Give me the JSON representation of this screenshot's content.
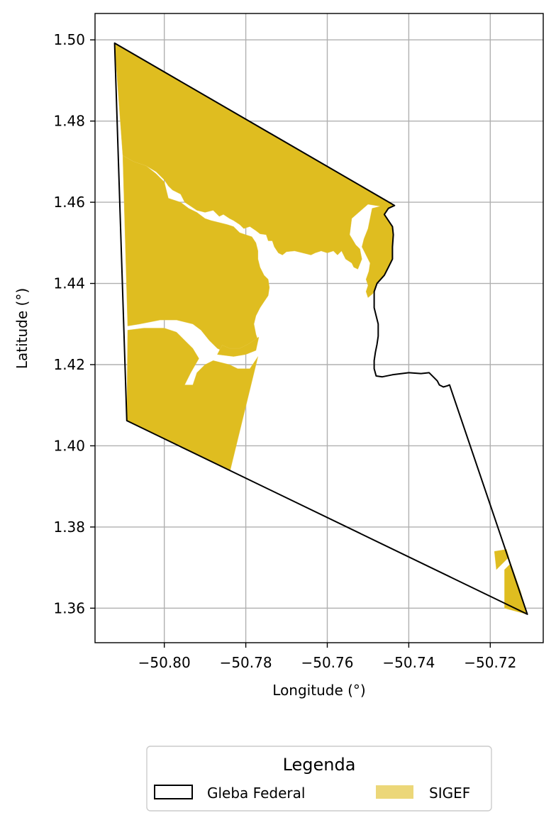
{
  "chart_data": {
    "type": "map",
    "xlabel": "Longitude (°)",
    "ylabel": "Latitude (°)",
    "xlim": [
      -50.817,
      -50.707
    ],
    "ylim": [
      1.3515,
      1.5065
    ],
    "grid": true,
    "x_ticks": [
      -50.8,
      -50.78,
      -50.76,
      -50.74,
      -50.72
    ],
    "x_tick_labels": [
      "−50.80",
      "−50.78",
      "−50.76",
      "−50.74",
      "−50.72"
    ],
    "y_ticks": [
      1.36,
      1.38,
      1.4,
      1.42,
      1.44,
      1.46,
      1.48,
      1.5
    ],
    "y_tick_labels": [
      "1.36",
      "1.38",
      "1.40",
      "1.42",
      "1.44",
      "1.46",
      "1.48",
      "1.50"
    ],
    "legend": {
      "title": "Legenda",
      "placement": "bottom-center, below plot",
      "entries": [
        {
          "label": "Gleba Federal",
          "style": "outline",
          "color": "#000000"
        },
        {
          "label": "SIGEF",
          "style": "fill",
          "color": "#dfbd20"
        }
      ]
    },
    "layers": {
      "gleba_federal": {
        "name": "Gleba Federal",
        "stroke": "#000000",
        "coordinates": [
          [
            -50.8122,
            1.4992
          ],
          [
            -50.7445,
            1.4598
          ],
          [
            -50.7435,
            1.4592
          ],
          [
            -50.745,
            1.4585
          ],
          [
            -50.746,
            1.457
          ],
          [
            -50.745,
            1.4555
          ],
          [
            -50.744,
            1.454
          ],
          [
            -50.7438,
            1.452
          ],
          [
            -50.744,
            1.449
          ],
          [
            -50.744,
            1.446
          ],
          [
            -50.745,
            1.444
          ],
          [
            -50.746,
            1.442
          ],
          [
            -50.7478,
            1.44
          ],
          [
            -50.7485,
            1.438
          ],
          [
            -50.7485,
            1.434
          ],
          [
            -50.748,
            1.432
          ],
          [
            -50.7475,
            1.43
          ],
          [
            -50.7475,
            1.427
          ],
          [
            -50.7478,
            1.425
          ],
          [
            -50.7482,
            1.423
          ],
          [
            -50.7485,
            1.421
          ],
          [
            -50.7485,
            1.419
          ],
          [
            -50.748,
            1.4172
          ],
          [
            -50.7465,
            1.417
          ],
          [
            -50.744,
            1.4175
          ],
          [
            -50.74,
            1.418
          ],
          [
            -50.737,
            1.4178
          ],
          [
            -50.735,
            1.418
          ],
          [
            -50.734,
            1.417
          ],
          [
            -50.733,
            1.416
          ],
          [
            -50.7325,
            1.415
          ],
          [
            -50.7315,
            1.4145
          ],
          [
            -50.7305,
            1.4148
          ],
          [
            -50.73,
            1.415
          ],
          [
            -50.7109,
            1.3585
          ],
          [
            -50.8092,
            1.4062
          ],
          [
            -50.8122,
            1.4992
          ]
        ]
      },
      "sigef_parcels": {
        "name": "SIGEF",
        "fill": "#dfbd20",
        "polygons": [
          [
            [
              -50.8122,
              1.4992
            ],
            [
              -50.7445,
              1.4598
            ],
            [
              -50.7435,
              1.4592
            ],
            [
              -50.745,
              1.4585
            ],
            [
              -50.746,
              1.457
            ],
            [
              -50.745,
              1.4555
            ],
            [
              -50.744,
              1.454
            ],
            [
              -50.7438,
              1.452
            ],
            [
              -50.744,
              1.449
            ],
            [
              -50.744,
              1.446
            ],
            [
              -50.745,
              1.444
            ],
            [
              -50.746,
              1.442
            ],
            [
              -50.7478,
              1.44
            ],
            [
              -50.7488,
              1.4375
            ],
            [
              -50.75,
              1.4365
            ],
            [
              -50.7505,
              1.438
            ],
            [
              -50.75,
              1.4395
            ],
            [
              -50.7505,
              1.441
            ],
            [
              -50.7498,
              1.443
            ],
            [
              -50.7495,
              1.445
            ],
            [
              -50.7505,
              1.447
            ],
            [
              -50.7515,
              1.449
            ],
            [
              -50.751,
              1.451
            ],
            [
              -50.75,
              1.4535
            ],
            [
              -50.7495,
              1.456
            ],
            [
              -50.749,
              1.4585
            ],
            [
              -50.747,
              1.459
            ],
            [
              -50.75,
              1.4595
            ],
            [
              -50.754,
              1.456
            ],
            [
              -50.7545,
              1.452
            ],
            [
              -50.753,
              1.4495
            ],
            [
              -50.752,
              1.4485
            ],
            [
              -50.7515,
              1.446
            ],
            [
              -50.7525,
              1.4435
            ],
            [
              -50.7535,
              1.444
            ],
            [
              -50.754,
              1.445
            ],
            [
              -50.7555,
              1.446
            ],
            [
              -50.7565,
              1.448
            ],
            [
              -50.7575,
              1.447
            ],
            [
              -50.7585,
              1.448
            ],
            [
              -50.76,
              1.4475
            ],
            [
              -50.7615,
              1.448
            ],
            [
              -50.763,
              1.4475
            ],
            [
              -50.764,
              1.447
            ],
            [
              -50.766,
              1.4475
            ],
            [
              -50.768,
              1.448
            ],
            [
              -50.77,
              1.4478
            ],
            [
              -50.771,
              1.447
            ],
            [
              -50.772,
              1.4475
            ],
            [
              -50.773,
              1.449
            ],
            [
              -50.7735,
              1.4505
            ],
            [
              -50.7745,
              1.4505
            ],
            [
              -50.775,
              1.452
            ],
            [
              -50.7765,
              1.4522
            ],
            [
              -50.7775,
              1.453
            ],
            [
              -50.779,
              1.454
            ],
            [
              -50.7805,
              1.4535
            ],
            [
              -50.7815,
              1.4545
            ],
            [
              -50.783,
              1.4555
            ],
            [
              -50.784,
              1.456
            ],
            [
              -50.7855,
              1.457
            ],
            [
              -50.7865,
              1.4565
            ],
            [
              -50.788,
              1.458
            ],
            [
              -50.79,
              1.4575
            ],
            [
              -50.792,
              1.458
            ],
            [
              -50.7935,
              1.459
            ],
            [
              -50.795,
              1.46
            ],
            [
              -50.796,
              1.462
            ],
            [
              -50.798,
              1.463
            ],
            [
              -50.799,
              1.464
            ],
            [
              -50.8,
              1.4655
            ],
            [
              -50.802,
              1.4675
            ],
            [
              -50.8045,
              1.469
            ],
            [
              -50.8075,
              1.47
            ],
            [
              -50.8102,
              1.4715
            ],
            [
              -50.8122,
              1.4992
            ]
          ],
          [
            [
              -50.8102,
              1.4715
            ],
            [
              -50.8075,
              1.47
            ],
            [
              -50.8045,
              1.469
            ],
            [
              -50.802,
              1.467
            ],
            [
              -50.8,
              1.465
            ],
            [
              -50.799,
              1.461
            ],
            [
              -50.796,
              1.46
            ],
            [
              -50.794,
              1.4585
            ],
            [
              -50.792,
              1.4575
            ],
            [
              -50.79,
              1.456
            ],
            [
              -50.7885,
              1.4555
            ],
            [
              -50.7865,
              1.455
            ],
            [
              -50.7845,
              1.4545
            ],
            [
              -50.783,
              1.454
            ],
            [
              -50.7815,
              1.4525
            ],
            [
              -50.78,
              1.452
            ],
            [
              -50.7785,
              1.4515
            ],
            [
              -50.7775,
              1.45
            ],
            [
              -50.777,
              1.448
            ],
            [
              -50.777,
              1.446
            ],
            [
              -50.7765,
              1.444
            ],
            [
              -50.7755,
              1.442
            ],
            [
              -50.7745,
              1.441
            ],
            [
              -50.7742,
              1.439
            ],
            [
              -50.7745,
              1.437
            ],
            [
              -50.7755,
              1.4355
            ],
            [
              -50.7765,
              1.434
            ],
            [
              -50.7775,
              1.432
            ],
            [
              -50.778,
              1.43
            ],
            [
              -50.7775,
              1.4275
            ],
            [
              -50.777,
              1.426
            ],
            [
              -50.781,
              1.423
            ],
            [
              -50.785,
              1.423
            ],
            [
              -50.787,
              1.424
            ],
            [
              -50.789,
              1.426
            ],
            [
              -50.791,
              1.4285
            ],
            [
              -50.793,
              1.43
            ],
            [
              -50.797,
              1.431
            ],
            [
              -50.801,
              1.431
            ],
            [
              -50.806,
              1.43
            ],
            [
              -50.809,
              1.4295
            ],
            [
              -50.8102,
              1.4715
            ]
          ],
          [
            [
              -50.809,
              1.4285
            ],
            [
              -50.805,
              1.429
            ],
            [
              -50.8,
              1.429
            ],
            [
              -50.797,
              1.428
            ],
            [
              -50.795,
              1.426
            ],
            [
              -50.793,
              1.424
            ],
            [
              -50.7915,
              1.4215
            ],
            [
              -50.7935,
              1.418
            ],
            [
              -50.795,
              1.415
            ],
            [
              -50.793,
              1.415
            ],
            [
              -50.792,
              1.418
            ],
            [
              -50.79,
              1.42
            ],
            [
              -50.788,
              1.421
            ],
            [
              -50.784,
              1.42
            ],
            [
              -50.782,
              1.419
            ],
            [
              -50.78,
              1.419
            ],
            [
              -50.779,
              1.419
            ],
            [
              -50.777,
              1.422
            ],
            [
              -50.7838,
              1.394
            ],
            [
              -50.8092,
              1.4062
            ],
            [
              -50.809,
              1.4285
            ]
          ],
          [
            [
              -50.7768,
              1.4268
            ],
            [
              -50.7795,
              1.425
            ],
            [
              -50.7815,
              1.424
            ],
            [
              -50.784,
              1.424
            ],
            [
              -50.7858,
              1.4248
            ],
            [
              -50.787,
              1.4225
            ],
            [
              -50.783,
              1.422
            ],
            [
              -50.78,
              1.4225
            ],
            [
              -50.7775,
              1.4235
            ],
            [
              -50.7768,
              1.4268
            ]
          ],
          [
            [
              -50.719,
              1.374
            ],
            [
              -50.716,
              1.3745
            ],
            [
              -50.715,
              1.371
            ],
            [
              -50.7165,
              1.3695
            ],
            [
              -50.7165,
              1.36
            ],
            [
              -50.711,
              1.3585
            ],
            [
              -50.7125,
              1.364
            ],
            [
              -50.7155,
              1.3725
            ],
            [
              -50.7185,
              1.3695
            ],
            [
              -50.719,
              1.374
            ]
          ]
        ]
      }
    }
  }
}
